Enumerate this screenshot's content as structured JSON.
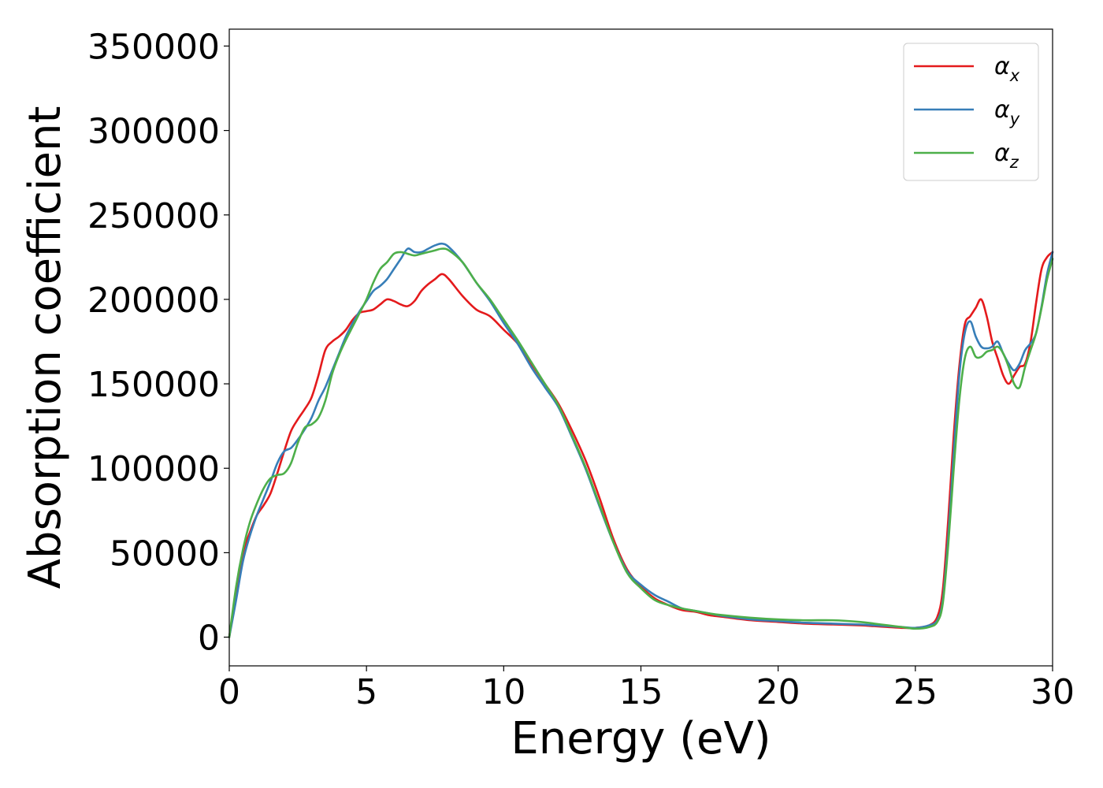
{
  "chart_data": {
    "type": "line",
    "title": "",
    "xlabel": "Energy (eV)",
    "ylabel": "Absorption coefficient",
    "xlim": [
      0,
      30
    ],
    "ylim": [
      -17000,
      360000
    ],
    "xticks": [
      0,
      5,
      10,
      15,
      20,
      25,
      30
    ],
    "yticks": [
      0,
      50000,
      100000,
      150000,
      200000,
      250000,
      300000,
      350000
    ],
    "grid": false,
    "legend_position": "top-right",
    "series": [
      {
        "name": "α",
        "subscript": "x",
        "color": "#e41a1c",
        "x": [
          0,
          0.25,
          0.5,
          0.75,
          1,
          1.25,
          1.5,
          1.75,
          2,
          2.25,
          2.5,
          2.75,
          3,
          3.25,
          3.5,
          3.75,
          4,
          4.25,
          4.5,
          4.75,
          5,
          5.25,
          5.5,
          5.75,
          6,
          6.25,
          6.5,
          6.75,
          7,
          7.25,
          7.5,
          7.75,
          8,
          8.5,
          9,
          9.5,
          10,
          10.5,
          11,
          11.5,
          12,
          12.5,
          13,
          13.5,
          14,
          14.5,
          15,
          15.5,
          16,
          16.5,
          17,
          17.5,
          18,
          19,
          20,
          21,
          22,
          23,
          23.5,
          24,
          24.5,
          25,
          25.5,
          25.8,
          26,
          26.2,
          26.4,
          26.6,
          26.8,
          27,
          27.2,
          27.4,
          27.6,
          27.8,
          28,
          28.2,
          28.4,
          28.6,
          28.8,
          29,
          29.2,
          29.4,
          29.6,
          29.8,
          30
        ],
        "y": [
          0,
          27000,
          50000,
          62000,
          72000,
          78000,
          85000,
          97000,
          110000,
          122000,
          129000,
          135000,
          142000,
          155000,
          170000,
          175000,
          178000,
          182000,
          188000,
          192000,
          193000,
          194000,
          197000,
          200000,
          199000,
          197000,
          196000,
          199000,
          205000,
          209000,
          212000,
          215000,
          212000,
          202000,
          194000,
          190000,
          182000,
          174000,
          162000,
          150000,
          138000,
          122000,
          104000,
          82000,
          58000,
          40000,
          30000,
          23000,
          19000,
          16000,
          15000,
          13000,
          12000,
          10000,
          9000,
          8000,
          7500,
          7000,
          6500,
          6000,
          5500,
          5500,
          7000,
          12000,
          28000,
          70000,
          120000,
          160000,
          185000,
          190000,
          195000,
          200000,
          190000,
          175000,
          165000,
          155000,
          150000,
          155000,
          160000,
          162000,
          175000,
          198000,
          218000,
          225000,
          228000
        ]
      },
      {
        "name": "α",
        "subscript": "y",
        "color": "#377eb8",
        "x": [
          0,
          0.25,
          0.5,
          0.75,
          1,
          1.25,
          1.5,
          1.75,
          2,
          2.25,
          2.5,
          2.75,
          3,
          3.25,
          3.5,
          3.75,
          4,
          4.25,
          4.5,
          4.75,
          5,
          5.25,
          5.5,
          5.75,
          6,
          6.25,
          6.5,
          6.75,
          7,
          7.25,
          7.5,
          7.75,
          8,
          8.5,
          9,
          9.5,
          10,
          10.5,
          11,
          11.5,
          12,
          12.5,
          13,
          13.5,
          14,
          14.5,
          15,
          15.5,
          16,
          16.5,
          17,
          17.5,
          18,
          19,
          20,
          21,
          22,
          23,
          23.5,
          24,
          24.5,
          25,
          25.5,
          25.8,
          26,
          26.2,
          26.4,
          26.6,
          26.8,
          27,
          27.2,
          27.4,
          27.6,
          27.8,
          28,
          28.2,
          28.4,
          28.6,
          28.8,
          29,
          29.2,
          29.4,
          29.6,
          29.8,
          30
        ],
        "y": [
          0,
          22000,
          45000,
          60000,
          72000,
          82000,
          92000,
          103000,
          110000,
          112000,
          117000,
          123000,
          130000,
          140000,
          148000,
          158000,
          168000,
          178000,
          186000,
          193000,
          199000,
          205000,
          208000,
          212000,
          218000,
          224000,
          230000,
          228000,
          228000,
          230000,
          232000,
          233000,
          231000,
          222000,
          210000,
          199000,
          186000,
          174000,
          160000,
          148000,
          136000,
          118000,
          99000,
          77000,
          56000,
          39000,
          31000,
          25000,
          21000,
          17000,
          15500,
          14000,
          12500,
          10500,
          9500,
          8500,
          8000,
          7500,
          7000,
          6500,
          6000,
          5500,
          7000,
          10000,
          22000,
          60000,
          110000,
          155000,
          180000,
          187000,
          178000,
          172000,
          171000,
          172000,
          175000,
          168000,
          162000,
          158000,
          162000,
          170000,
          174000,
          180000,
          196000,
          215000,
          228000
        ]
      },
      {
        "name": "α",
        "subscript": "z",
        "color": "#4daf4a",
        "x": [
          0,
          0.25,
          0.5,
          0.75,
          1,
          1.25,
          1.5,
          1.75,
          2,
          2.25,
          2.5,
          2.75,
          3,
          3.25,
          3.5,
          3.75,
          4,
          4.25,
          4.5,
          4.75,
          5,
          5.25,
          5.5,
          5.75,
          6,
          6.25,
          6.5,
          6.75,
          7,
          7.25,
          7.5,
          7.75,
          8,
          8.5,
          9,
          9.5,
          10,
          10.5,
          11,
          11.5,
          12,
          12.5,
          13,
          13.5,
          14,
          14.5,
          15,
          15.5,
          16,
          16.5,
          17,
          17.5,
          18,
          19,
          20,
          21,
          22,
          23,
          23.5,
          24,
          24.5,
          25,
          25.5,
          25.8,
          26,
          26.2,
          26.4,
          26.6,
          26.8,
          27,
          27.2,
          27.4,
          27.6,
          27.8,
          28,
          28.2,
          28.4,
          28.6,
          28.8,
          29,
          29.2,
          29.4,
          29.6,
          29.8,
          30
        ],
        "y": [
          0,
          30000,
          52000,
          68000,
          79000,
          88000,
          94000,
          96000,
          97000,
          103000,
          115000,
          124000,
          126000,
          130000,
          140000,
          156000,
          167000,
          176000,
          184000,
          192000,
          200000,
          210000,
          218000,
          222000,
          227000,
          228000,
          227000,
          226000,
          227000,
          228000,
          229000,
          230000,
          229000,
          222000,
          210000,
          200000,
          188000,
          176000,
          163000,
          150000,
          137000,
          119000,
          100000,
          78000,
          56000,
          38000,
          29000,
          22000,
          19000,
          17000,
          15500,
          14000,
          13000,
          11500,
          10500,
          10000,
          10000,
          9000,
          8000,
          7000,
          6000,
          5000,
          6000,
          9000,
          20000,
          55000,
          100000,
          140000,
          165000,
          172000,
          166000,
          166000,
          169000,
          170000,
          172000,
          168000,
          160000,
          150000,
          148000,
          160000,
          170000,
          180000,
          195000,
          212000,
          224000
        ]
      }
    ]
  }
}
